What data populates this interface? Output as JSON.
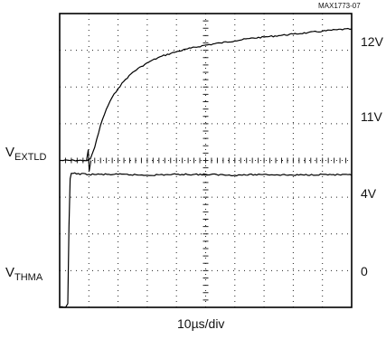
{
  "figure_id": "MAX1773-07",
  "chart_data": {
    "type": "line",
    "title": "",
    "xlabel": "10µs/div",
    "grid": true,
    "divisions": {
      "x": 10,
      "y": 8
    },
    "x_unit": "µs",
    "x_range": [
      0,
      100
    ],
    "right_axis_labels": [
      "12V",
      "11V",
      "4V",
      "0"
    ],
    "channels": [
      {
        "name": "V",
        "subscript": "EXTLD"
      },
      {
        "name": "V",
        "subscript": "THMA"
      }
    ],
    "series": [
      {
        "name": "VEXTLD",
        "y_unit": "V",
        "y_range": [
          10.5,
          12.5
        ],
        "x": [
          0,
          5,
          8.5,
          9.5,
          10.5,
          12,
          14,
          16,
          18,
          20,
          22,
          25,
          28,
          31,
          35,
          40,
          45,
          50,
          55,
          60,
          65,
          70,
          75,
          80,
          85,
          90,
          95,
          100
        ],
        "y": [
          10.5,
          10.5,
          10.5,
          10.5,
          10.52,
          10.68,
          10.98,
          11.2,
          11.36,
          11.48,
          11.58,
          11.7,
          11.78,
          11.85,
          11.92,
          11.98,
          12.03,
          12.07,
          12.1,
          12.13,
          12.16,
          12.18,
          12.2,
          12.22,
          12.24,
          12.26,
          12.28,
          12.29
        ]
      },
      {
        "name": "VTHMA",
        "y_unit": "V",
        "y_range": [
          0,
          4
        ],
        "x": [
          0,
          2,
          2.8,
          3.2,
          3.6,
          4,
          10,
          20,
          30,
          40,
          50,
          60,
          70,
          80,
          90,
          100
        ],
        "y": [
          0,
          0,
          0.1,
          2.2,
          3.5,
          3.65,
          3.62,
          3.62,
          3.6,
          3.62,
          3.62,
          3.6,
          3.62,
          3.6,
          3.62,
          3.6
        ]
      }
    ]
  }
}
